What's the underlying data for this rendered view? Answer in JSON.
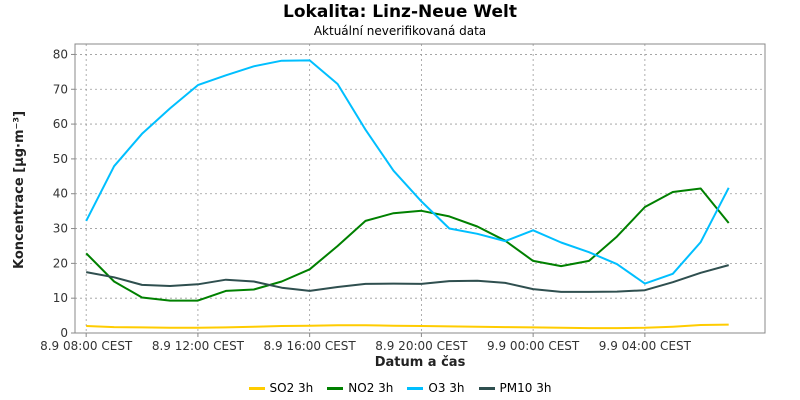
{
  "header": {
    "title": "Lokalita: Linz-Neue Welt",
    "subtitle": "Aktuální neverifikovaná data"
  },
  "chart_data": {
    "type": "line",
    "title": "Lokalita: Linz-Neue Welt",
    "subtitle": "Aktuální neverifikovaná data",
    "xlabel": "Datum a čas",
    "ylabel": "Koncentrace [µg·m⁻³]",
    "ylim": [
      0,
      83
    ],
    "yticks": [
      0,
      10,
      20,
      30,
      40,
      50,
      60,
      70,
      80
    ],
    "x_hours": [
      8,
      9,
      10,
      11,
      12,
      13,
      14,
      15,
      16,
      17,
      18,
      19,
      20,
      21,
      22,
      23,
      24,
      25,
      26,
      27,
      28,
      29,
      30,
      31
    ],
    "xlim_hours": [
      7.6,
      32.3
    ],
    "xticks": [
      {
        "hour": 8,
        "label": "8.9 08:00 CEST"
      },
      {
        "hour": 12,
        "label": "8.9 12:00 CEST"
      },
      {
        "hour": 16,
        "label": "8.9 16:00 CEST"
      },
      {
        "hour": 20,
        "label": "8.9 20:00 CEST"
      },
      {
        "hour": 24,
        "label": "9.9 00:00 CEST"
      },
      {
        "hour": 28,
        "label": "9.9 04:00 CEST"
      }
    ],
    "grid": true,
    "legend_position": "bottom",
    "series": [
      {
        "name": "SO2 3h",
        "color": "#ffcc00",
        "values": [
          2.0,
          1.7,
          1.6,
          1.5,
          1.5,
          1.6,
          1.8,
          2.0,
          2.1,
          2.2,
          2.2,
          2.1,
          2.0,
          1.9,
          1.8,
          1.7,
          1.6,
          1.5,
          1.4,
          1.4,
          1.5,
          1.8,
          2.3,
          2.4
        ]
      },
      {
        "name": "NO2 3h",
        "color": "#008000",
        "values": [
          22.9,
          14.8,
          10.2,
          9.3,
          9.3,
          12.1,
          12.5,
          14.8,
          18.3,
          25.0,
          32.2,
          34.4,
          35.1,
          33.5,
          30.6,
          26.5,
          20.7,
          19.2,
          20.7,
          27.7,
          36.2,
          40.5,
          41.5,
          31.6
        ]
      },
      {
        "name": "O3 3h",
        "color": "#00bfff",
        "values": [
          32.2,
          47.9,
          57.2,
          64.5,
          71.2,
          74.0,
          76.6,
          78.2,
          78.3,
          71.5,
          58.4,
          46.6,
          37.8,
          30.0,
          28.5,
          26.4,
          29.5,
          26.0,
          23.2,
          19.8,
          14.2,
          17.0,
          26.1,
          41.7
        ]
      },
      {
        "name": "PM10 3h",
        "color": "#2f4f4f",
        "values": [
          17.5,
          16.0,
          13.8,
          13.5,
          14.0,
          15.3,
          14.8,
          13.0,
          12.1,
          13.2,
          14.1,
          14.2,
          14.1,
          14.9,
          15.0,
          14.4,
          12.6,
          11.8,
          11.8,
          11.9,
          12.3,
          14.6,
          17.3,
          19.5
        ]
      }
    ]
  }
}
